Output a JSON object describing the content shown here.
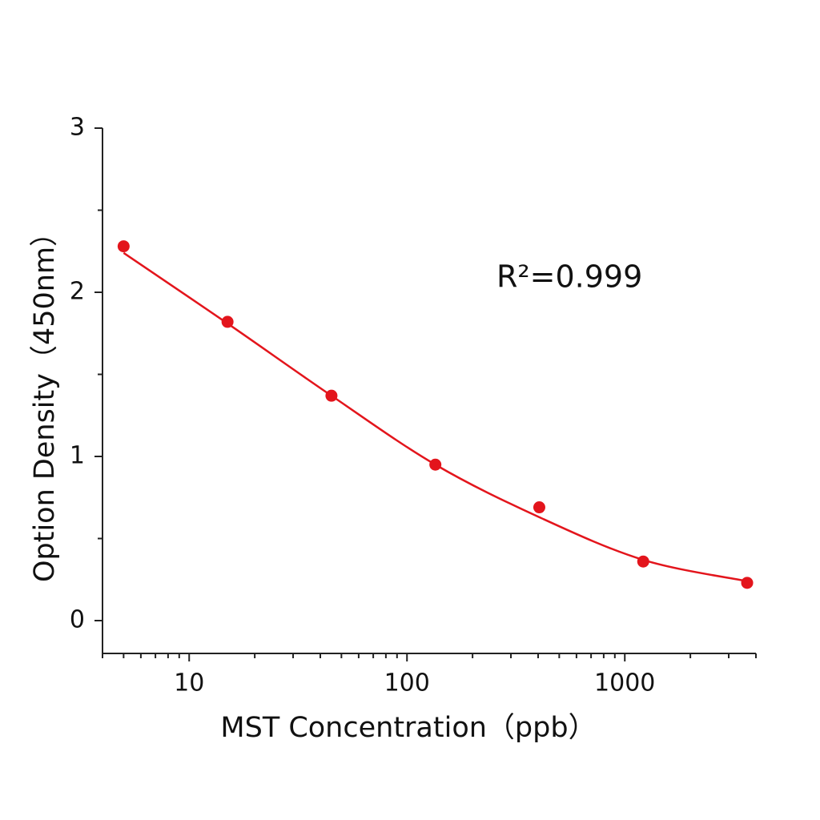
{
  "chart_data": {
    "type": "scatter",
    "xlabel": "MST Concentration（ppb）",
    "ylabel": "Option Density（450nm）",
    "annotation": "R²=0.999",
    "xscale": "log",
    "xlim": [
      4,
      4000
    ],
    "ylim": [
      -0.2,
      3
    ],
    "xticks": [
      10,
      100,
      1000
    ],
    "xminorticks": [
      4,
      5,
      6,
      7,
      8,
      9,
      20,
      30,
      40,
      50,
      60,
      70,
      80,
      90,
      200,
      300,
      400,
      500,
      600,
      700,
      800,
      900,
      2000,
      3000,
      4000
    ],
    "yticks": [
      0,
      1,
      2,
      3
    ],
    "yminorticks": [
      0.5,
      1.5,
      2.5
    ],
    "series": [
      {
        "kind": "points",
        "color": "#e3151c",
        "x": [
          5,
          15,
          45,
          135,
          405,
          1215,
          3645
        ],
        "values": [
          2.28,
          1.82,
          1.37,
          0.95,
          0.69,
          0.36,
          0.23
        ]
      },
      {
        "kind": "line",
        "color": "#e3151c",
        "x": [
          5,
          15,
          45,
          135,
          405,
          1215,
          3645
        ],
        "values": [
          2.24,
          1.81,
          1.37,
          0.95,
          0.63,
          0.37,
          0.24
        ]
      }
    ]
  }
}
